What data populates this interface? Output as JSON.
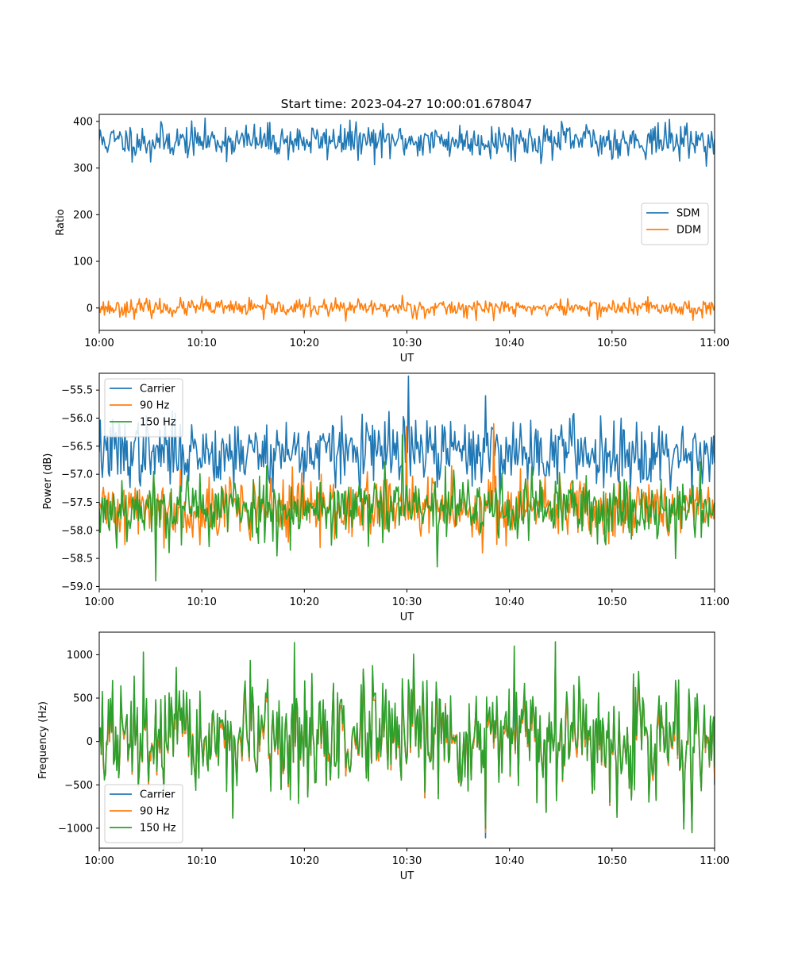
{
  "title": "Start time: 2023-04-27 10:00:01.678047",
  "chart_data": [
    {
      "type": "line",
      "xlabel": "UT",
      "ylabel": "Ratio",
      "x_ticks": [
        "10:00",
        "10:10",
        "10:20",
        "10:30",
        "10:40",
        "10:50",
        "11:00"
      ],
      "x_range_minutes": [
        0,
        60
      ],
      "ylim": [
        -48,
        415
      ],
      "y_ticks": [
        0,
        100,
        200,
        300,
        400
      ],
      "y_tick_labels": [
        "0",
        "100",
        "200",
        "300",
        "400"
      ],
      "legend_position": "center-right",
      "series": [
        {
          "name": "SDM",
          "color": "#1f77b4",
          "mean": 358,
          "amplitude": 18,
          "seed": 11,
          "points": [
            [
              0,
              360
            ],
            [
              5,
              313
            ],
            [
              10.5,
              345
            ],
            [
              23.5,
              393
            ],
            [
              27.5,
              322
            ],
            [
              40.8,
              370
            ],
            [
              47.5,
              393
            ],
            [
              49,
              330
            ],
            [
              54,
              385
            ],
            [
              60,
              362
            ]
          ]
        },
        {
          "name": "DDM",
          "color": "#ff7f0e",
          "mean": 0,
          "amplitude": 9,
          "seed": 23,
          "points": [
            [
              0,
              0
            ],
            [
              10,
              25
            ],
            [
              16,
              -25
            ],
            [
              24,
              -28
            ],
            [
              29.5,
              27
            ],
            [
              38.5,
              -27
            ],
            [
              53.5,
              24
            ],
            [
              60,
              5
            ]
          ]
        }
      ]
    },
    {
      "type": "line",
      "xlabel": "UT",
      "ylabel": "Power (dB)",
      "x_ticks": [
        "10:00",
        "10:10",
        "10:20",
        "10:30",
        "10:40",
        "10:50",
        "11:00"
      ],
      "x_range_minutes": [
        0,
        60
      ],
      "ylim": [
        -59.05,
        -55.2
      ],
      "y_ticks": [
        -59.0,
        -58.5,
        -58.0,
        -57.5,
        -57.0,
        -56.5,
        -56.0,
        -55.5
      ],
      "y_tick_labels": [
        "−59.0",
        "−58.5",
        "−58.0",
        "−57.5",
        "−57.0",
        "−56.5",
        "−56.0",
        "−55.5"
      ],
      "legend_position": "top-left",
      "series": [
        {
          "name": "Carrier",
          "color": "#1f77b4",
          "mean": -56.6,
          "amplitude": 0.3,
          "seed": 37,
          "points": [
            [
              0,
              -56.6
            ],
            [
              5,
              -57.0
            ],
            [
              30.2,
              -55.25
            ],
            [
              37.7,
              -55.6
            ],
            [
              45,
              -56.3
            ],
            [
              60,
              -56.8
            ]
          ]
        },
        {
          "name": "90 Hz",
          "color": "#ff7f0e",
          "mean": -57.6,
          "amplitude": 0.28,
          "seed": 41,
          "points": [
            [
              0,
              -57.5
            ],
            [
              30,
              -56.15
            ],
            [
              38.5,
              -56.1
            ],
            [
              60,
              -57.6
            ]
          ]
        },
        {
          "name": "150 Hz",
          "color": "#2ca02c",
          "mean": -57.6,
          "amplitude": 0.3,
          "seed": 53,
          "points": [
            [
              0,
              -57.6
            ],
            [
              5.5,
              -58.9
            ],
            [
              29.5,
              -56.3
            ],
            [
              33,
              -58.65
            ],
            [
              60,
              -57.5
            ]
          ]
        }
      ]
    },
    {
      "type": "line",
      "xlabel": "UT",
      "ylabel": "Frequency (Hz)",
      "x_ticks": [
        "10:00",
        "10:10",
        "10:20",
        "10:30",
        "10:40",
        "10:50",
        "11:00"
      ],
      "x_range_minutes": [
        0,
        60
      ],
      "ylim": [
        -1230,
        1260
      ],
      "y_ticks": [
        -1000,
        -500,
        0,
        500,
        1000
      ],
      "y_tick_labels": [
        "−1000",
        "−500",
        "0",
        "500",
        "1000"
      ],
      "legend_position": "bottom-left",
      "series": [
        {
          "name": "Carrier",
          "color": "#1f77b4",
          "mean": 0,
          "amplitude": 300,
          "seed": 67,
          "points": [
            [
              0,
              0
            ],
            [
              37.7,
              -1110
            ],
            [
              40.5,
              640
            ],
            [
              60,
              -500
            ]
          ]
        },
        {
          "name": "90 Hz",
          "color": "#ff7f0e",
          "mean": 0,
          "amplitude": 300,
          "seed": 67,
          "points": [
            [
              0,
              0
            ],
            [
              37.7,
              -1050
            ],
            [
              60,
              -450
            ]
          ]
        },
        {
          "name": "150 Hz",
          "color": "#2ca02c",
          "mean": 30,
          "amplitude": 330,
          "seed": 67,
          "points": [
            [
              0,
              0
            ],
            [
              4.3,
              1030
            ],
            [
              19,
              1140
            ],
            [
              37.7,
              -1000
            ],
            [
              40.5,
              1100
            ],
            [
              60,
              -300
            ]
          ]
        }
      ]
    }
  ]
}
